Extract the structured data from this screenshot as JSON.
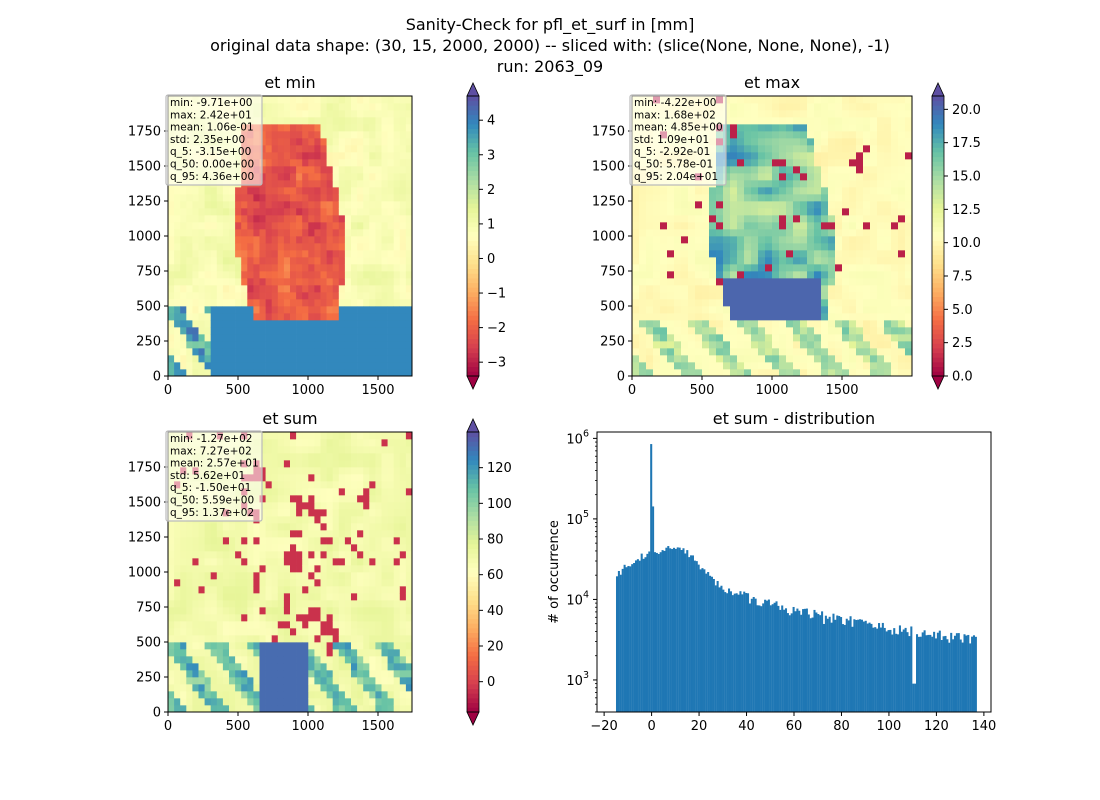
{
  "figure": {
    "title_lines": [
      "Sanity-Check for pfl_et_surf in [mm]",
      "original data shape: (30, 15, 2000, 2000) -- sliced with: (slice(None, None, None), -1)",
      "run: 2063_09"
    ]
  },
  "colors": {
    "hist_bar": "#1f77b4",
    "axes": "#000000",
    "stat_box_edge": "#bbbbbb",
    "colormap": "Spectral",
    "colormap_stops": [
      "#9e0142",
      "#d53e4f",
      "#f46d43",
      "#fdae61",
      "#fee08b",
      "#ffffbf",
      "#e6f598",
      "#abdda4",
      "#66c2a5",
      "#3288bd",
      "#5e4fa2"
    ]
  },
  "chart_data": [
    {
      "type": "heatmap",
      "title": "et min",
      "xlabel": "",
      "ylabel": "",
      "xlim": [
        0,
        2000
      ],
      "ylim": [
        0,
        2000
      ],
      "x_ticks": [
        "0",
        "500",
        "1000",
        "1500"
      ],
      "y_ticks": [
        "0",
        "250",
        "500",
        "750",
        "1000",
        "1250",
        "1500",
        "1750"
      ],
      "colorbar": {
        "range": [
          -3.4,
          4.7
        ],
        "ticks": [
          "−3",
          "−2",
          "−1",
          "0",
          "1",
          "2",
          "3",
          "4"
        ],
        "extend": "both"
      },
      "stats": [
        "min: -9.71e+00",
        "max: 2.42e+01",
        "mean: 1.06e-01",
        "std: 2.35e+00",
        "q_5: -3.15e+00",
        "q_50: 0.00e+00",
        "q_95: 4.36e+00"
      ]
    },
    {
      "type": "heatmap",
      "title": "et max",
      "xlabel": "",
      "ylabel": "",
      "xlim": [
        0,
        2000
      ],
      "ylim": [
        0,
        2000
      ],
      "x_ticks": [
        "0",
        "500",
        "1000",
        "1500"
      ],
      "y_ticks": [
        "0",
        "250",
        "500",
        "750",
        "1000",
        "1250",
        "1500",
        "1750"
      ],
      "colorbar": {
        "range": [
          0,
          21
        ],
        "ticks": [
          "0.0",
          "2.5",
          "5.0",
          "7.5",
          "10.0",
          "12.5",
          "15.0",
          "17.5",
          "20.0"
        ],
        "extend": "both"
      },
      "stats": [
        "min: -4.22e+00",
        "max: 1.68e+02",
        "mean: 4.85e+00",
        "std: 1.09e+01",
        "q_5: -2.92e-01",
        "q_50: 5.78e-01",
        "q_95: 2.04e+01"
      ]
    },
    {
      "type": "heatmap",
      "title": "et sum",
      "xlabel": "",
      "ylabel": "",
      "xlim": [
        0,
        2000
      ],
      "ylim": [
        0,
        2000
      ],
      "x_ticks": [
        "0",
        "500",
        "1000",
        "1500"
      ],
      "y_ticks": [
        "0",
        "250",
        "500",
        "750",
        "1000",
        "1250",
        "1500",
        "1750"
      ],
      "colorbar": {
        "range": [
          -17,
          140
        ],
        "ticks": [
          "0",
          "20",
          "40",
          "60",
          "80",
          "100",
          "120"
        ],
        "extend": "both"
      },
      "stats": [
        "min: -1.27e+02",
        "max: 7.27e+02",
        "mean: 2.57e+01",
        "std: 5.62e+01",
        "q_5: -1.50e+01",
        "q_50: 5.59e+00",
        "q_95: 1.37e+02"
      ]
    },
    {
      "type": "bar",
      "title": "et sum - distribution",
      "xlabel": "",
      "ylabel": "# of occurrence",
      "xlim": [
        -23,
        143
      ],
      "yscale": "log",
      "ylim": [
        400,
        1200000
      ],
      "x_ticks": [
        "−20",
        "0",
        "20",
        "40",
        "60",
        "80",
        "100",
        "120",
        "140"
      ],
      "y_ticks": [
        "10",
        "10",
        "10",
        "10"
      ],
      "y_tick_exponents": [
        "3",
        "4",
        "5",
        "6"
      ],
      "bin_range": [
        -15,
        137
      ],
      "profile": [
        [
          -15,
          20000
        ],
        [
          -10,
          27000
        ],
        [
          -5,
          34000
        ],
        [
          -1,
          38000
        ],
        [
          0,
          850000
        ],
        [
          1,
          38000
        ],
        [
          5,
          41000
        ],
        [
          10,
          45000
        ],
        [
          15,
          40000
        ],
        [
          20,
          27000
        ],
        [
          25,
          18000
        ],
        [
          30,
          14000
        ],
        [
          40,
          11000
        ],
        [
          50,
          8500
        ],
        [
          60,
          7000
        ],
        [
          70,
          6200
        ],
        [
          80,
          5500
        ],
        [
          90,
          5000
        ],
        [
          100,
          4500
        ],
        [
          110,
          4000
        ],
        [
          120,
          3600
        ],
        [
          130,
          3300
        ],
        [
          137,
          3100
        ]
      ],
      "dips": [
        [
          110.5,
          900
        ]
      ]
    }
  ]
}
